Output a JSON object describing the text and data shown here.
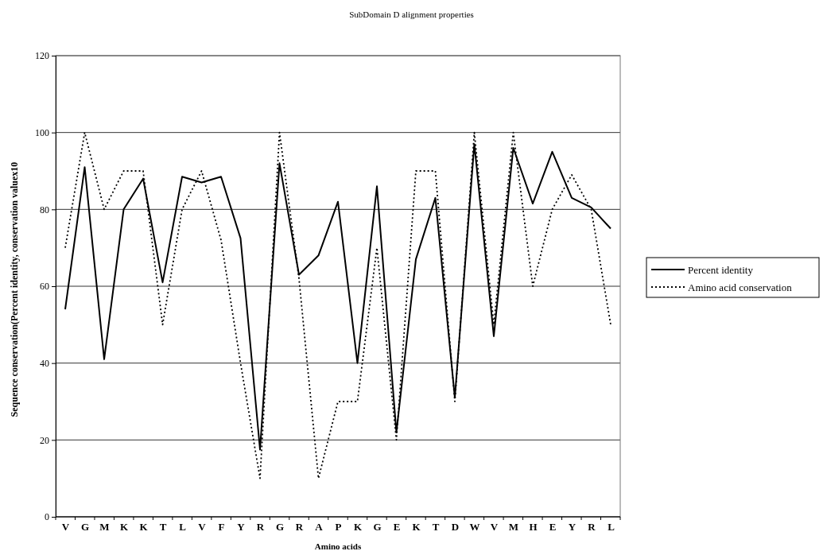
{
  "chart_data": {
    "type": "line",
    "title": "SubDomain D alignment properties",
    "xlabel": "Amino acids",
    "ylabel": "Sequence conservation(Percent identity, conservation valuex10",
    "categories": [
      "V",
      "G",
      "M",
      "K",
      "K",
      "T",
      "L",
      "V",
      "F",
      "Y",
      "R",
      "G",
      "R",
      "A",
      "P",
      "K",
      "G",
      "E",
      "K",
      "T",
      "D",
      "W",
      "V",
      "M",
      "H",
      "E",
      "Y",
      "R",
      "L"
    ],
    "series": [
      {
        "name": "Percent identity",
        "color": "#000000",
        "line_style": "solid",
        "values": [
          54,
          91,
          41,
          80,
          88,
          61,
          88.5,
          87,
          88.5,
          72.5,
          17.5,
          92,
          63,
          68,
          82,
          40,
          86,
          22,
          67,
          83,
          31,
          97,
          47,
          96,
          81.5,
          95,
          83,
          80.5,
          75
        ]
      },
      {
        "name": "Amino acid conservation",
        "color": "#000000",
        "line_style": "dotted",
        "values": [
          70,
          100,
          80,
          90,
          90,
          50,
          80,
          90,
          72,
          40,
          10,
          100,
          62,
          10,
          30,
          30,
          70,
          20,
          90,
          90,
          30,
          100,
          50,
          100,
          60,
          80,
          89,
          80,
          50
        ]
      }
    ],
    "ylim": [
      0,
      120
    ],
    "yticks": [
      0,
      20,
      40,
      60,
      80,
      100,
      120
    ],
    "grid": "y",
    "legend": "right",
    "marker": "none"
  }
}
